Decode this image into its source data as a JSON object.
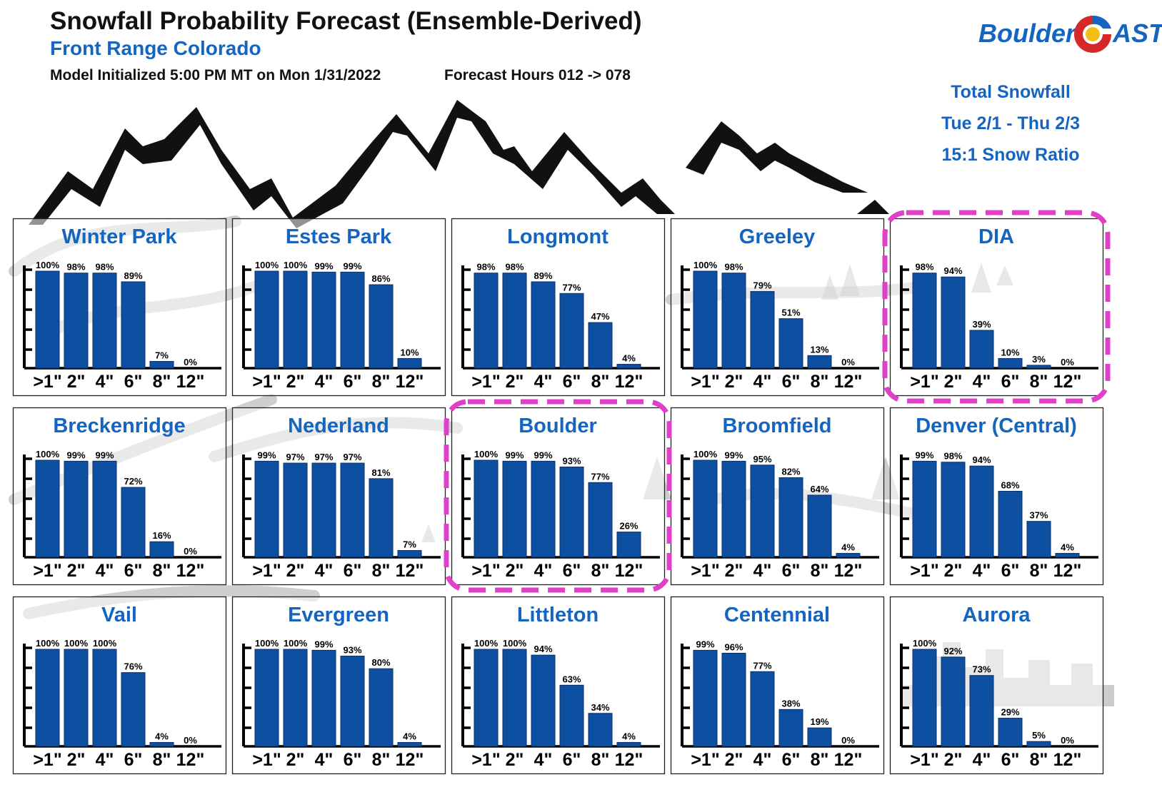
{
  "header": {
    "title": "Snowfall Probability Forecast (Ensemble-Derived)",
    "subtitle": "Front Range Colorado",
    "model_init": "Model Initialized 5:00 PM MT on Mon 1/31/2022",
    "forecast_hours": "Forecast Hours 012 -> 078"
  },
  "logo": {
    "left": "Boulder",
    "right": "AST"
  },
  "info": {
    "title": "Total Snowfall",
    "dates": "Tue 2/1 - Thu 2/3",
    "ratio": "15:1 Snow Ratio"
  },
  "colors": {
    "bar": "#0d4fa0",
    "title": "#1565c0",
    "highlight": "#e040c8",
    "background_art": "#9a9a9a"
  },
  "chart_data": {
    "type": "bar",
    "value_unit": "%",
    "categories": [
      ">1\"",
      "2\"",
      "4\"",
      "6\"",
      "8\"",
      "12\""
    ],
    "ylim": [
      0,
      100
    ],
    "highlighted": [
      "DIA",
      "Boulder"
    ],
    "panels": [
      {
        "name": "Winter Park",
        "values": [
          100,
          98,
          98,
          89,
          7,
          0
        ]
      },
      {
        "name": "Estes Park",
        "values": [
          100,
          100,
          99,
          99,
          86,
          10
        ]
      },
      {
        "name": "Longmont",
        "values": [
          98,
          98,
          89,
          77,
          47,
          4
        ]
      },
      {
        "name": "Greeley",
        "values": [
          100,
          98,
          79,
          51,
          13,
          0
        ]
      },
      {
        "name": "DIA",
        "values": [
          98,
          94,
          39,
          10,
          3,
          0
        ]
      },
      {
        "name": "Breckenridge",
        "values": [
          100,
          99,
          99,
          72,
          16,
          0
        ]
      },
      {
        "name": "Nederland",
        "values": [
          99,
          97,
          97,
          97,
          81,
          7
        ]
      },
      {
        "name": "Boulder",
        "values": [
          100,
          99,
          99,
          93,
          77,
          26
        ]
      },
      {
        "name": "Broomfield",
        "values": [
          100,
          99,
          95,
          82,
          64,
          4
        ]
      },
      {
        "name": "Denver (Central)",
        "values": [
          99,
          98,
          94,
          68,
          37,
          4
        ]
      },
      {
        "name": "Vail",
        "values": [
          100,
          100,
          100,
          76,
          4,
          0
        ]
      },
      {
        "name": "Evergreen",
        "values": [
          100,
          100,
          99,
          93,
          80,
          4
        ]
      },
      {
        "name": "Littleton",
        "values": [
          100,
          100,
          94,
          63,
          34,
          4
        ]
      },
      {
        "name": "Centennial",
        "values": [
          99,
          96,
          77,
          38,
          19,
          0
        ]
      },
      {
        "name": "Aurora",
        "values": [
          100,
          92,
          73,
          29,
          5,
          0
        ]
      }
    ]
  }
}
